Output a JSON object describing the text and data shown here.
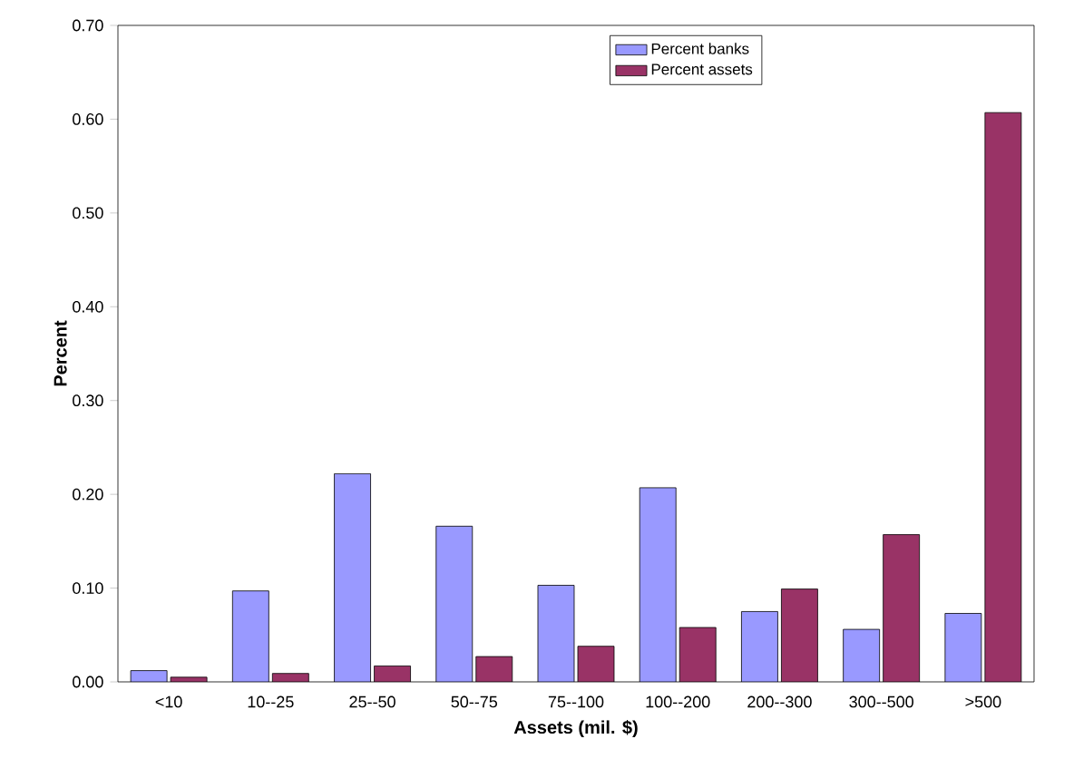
{
  "chart_data": {
    "type": "bar",
    "xlabel": "Assets (mil. $)",
    "ylabel": "Percent",
    "categories": [
      "<10",
      "10--25",
      "25--50",
      "50--75",
      "75--100",
      "100--200",
      "200--300",
      "300--500",
      ">500"
    ],
    "series": [
      {
        "name": "Percent banks",
        "color": "#9999ff",
        "values": [
          0.012,
          0.097,
          0.222,
          0.166,
          0.103,
          0.207,
          0.075,
          0.056,
          0.073
        ]
      },
      {
        "name": "Percent assets",
        "color": "#993366",
        "values": [
          0.005,
          0.009,
          0.017,
          0.027,
          0.038,
          0.058,
          0.099,
          0.157,
          0.607
        ]
      }
    ],
    "ylim": [
      0,
      0.7
    ],
    "yticks": [
      {
        "value": 0,
        "label": "0.00"
      },
      {
        "value": 0.1,
        "label": "0.10"
      },
      {
        "value": 0.2,
        "label": "0.20"
      },
      {
        "value": 0.3,
        "label": "0.30"
      },
      {
        "value": 0.4,
        "label": "0.40"
      },
      {
        "value": 0.5,
        "label": "0.50"
      },
      {
        "value": 0.6,
        "label": "0.60"
      },
      {
        "value": 0.7,
        "label": "0.70"
      }
    ],
    "legend": "top",
    "grid": false
  }
}
